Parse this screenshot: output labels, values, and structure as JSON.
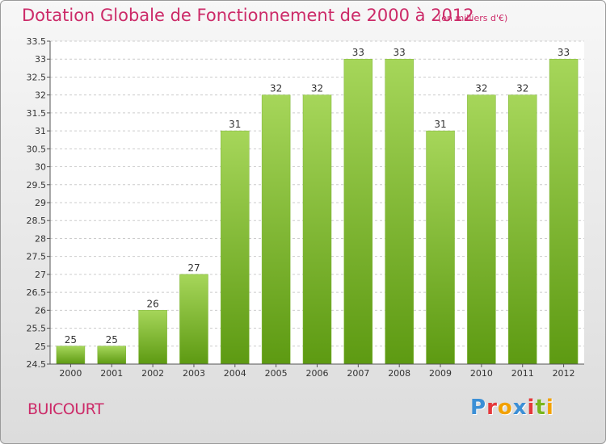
{
  "chart_data": {
    "type": "bar",
    "title": "Dotation Globale de Fonctionnement de 2000 à 2012",
    "subtitle": "(en milliers d'€)",
    "categories": [
      "2000",
      "2001",
      "2002",
      "2003",
      "2004",
      "2005",
      "2006",
      "2007",
      "2008",
      "2009",
      "2010",
      "2011",
      "2012"
    ],
    "values": [
      25,
      25,
      26,
      27,
      31,
      32,
      32,
      33,
      33,
      31,
      32,
      32,
      33
    ],
    "xlabel": "",
    "ylabel": "",
    "ylim": [
      24.5,
      33.5
    ],
    "yticks": [
      "24.5",
      "25",
      "25.5",
      "26",
      "26.5",
      "27",
      "27.5",
      "28",
      "28.5",
      "29",
      "29.5",
      "30",
      "30.5",
      "31",
      "31.5",
      "32",
      "32.5",
      "33",
      "33.5"
    ],
    "grid": true,
    "legend": "none"
  },
  "footer": {
    "commune": "BUICOURT",
    "logo_letters": [
      "P",
      "r",
      "o",
      "x",
      "i",
      "t",
      "i"
    ],
    "logo_colors": [
      "#3b8fd6",
      "#e5383b",
      "#f2a100",
      "#3b8fd6",
      "#e5383b",
      "#7ab51d",
      "#f2a100"
    ]
  },
  "colors": {
    "bar_top": "#a6d65a",
    "bar_bottom": "#5d9a12",
    "grid": "#cccccc",
    "accent": "#cc2a68"
  }
}
